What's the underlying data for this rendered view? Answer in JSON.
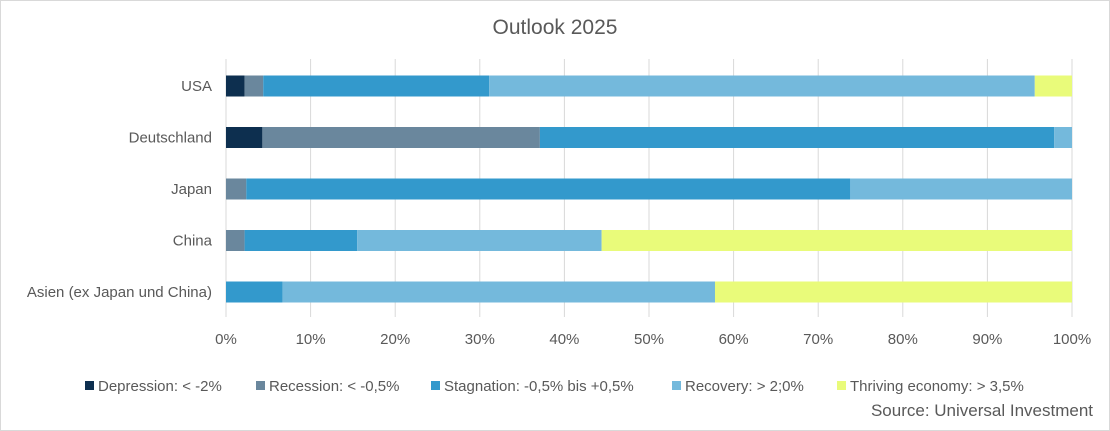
{
  "chart_data": {
    "type": "bar",
    "orientation": "horizontal",
    "stacked": "percent",
    "title": "Outlook 2025",
    "categories": [
      "USA",
      "Deutschland",
      "Japan",
      "China",
      "Asien (ex Japan und China)"
    ],
    "series": [
      {
        "name": "Depression: < -2%",
        "color": "#0d2f4f",
        "values": [
          2.2,
          4.3,
          0,
          0,
          0
        ]
      },
      {
        "name": "Recession: < -0,5%",
        "color": "#6a879d",
        "values": [
          2.2,
          32.8,
          2.4,
          2.2,
          0
        ]
      },
      {
        "name": "Stagnation: -0,5% bis +0,5%",
        "color": "#3399cc",
        "values": [
          26.7,
          60.8,
          71.4,
          13.3,
          6.7
        ]
      },
      {
        "name": "Recovery: > 2;0%",
        "color": "#74b9dc",
        "values": [
          64.5,
          2.1,
          26.2,
          28.9,
          51.1
        ]
      },
      {
        "name": "Thriving economy: > 3,5%",
        "color": "#e9fb7a",
        "values": [
          4.4,
          0,
          0,
          55.6,
          42.2
        ]
      }
    ],
    "xlim": [
      0,
      100
    ],
    "x_ticks": [
      "0%",
      "10%",
      "20%",
      "30%",
      "40%",
      "50%",
      "60%",
      "70%",
      "80%",
      "90%",
      "100%"
    ],
    "grid": true,
    "legend_position": "bottom"
  },
  "source_text": "Source: Universal Investment"
}
